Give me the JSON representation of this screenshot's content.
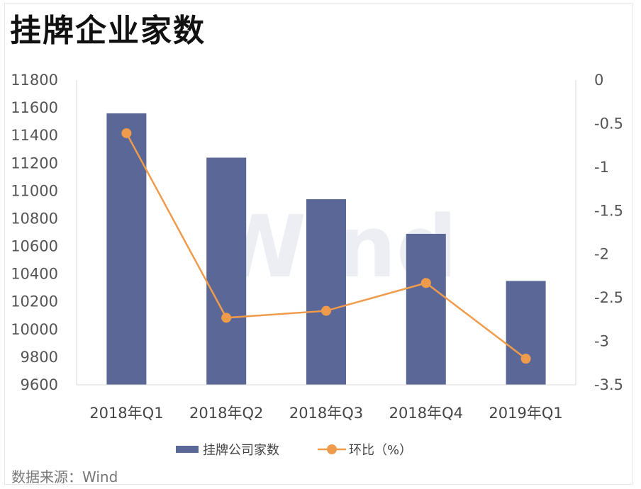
{
  "title": "挂牌企业家数",
  "source": "数据来源：Wind",
  "watermark": "Wind",
  "chart_data": {
    "type": "bar",
    "categories": [
      "2018年Q1",
      "2018年Q2",
      "2018年Q3",
      "2018年Q4",
      "2019年Q1"
    ],
    "series": [
      {
        "name": "挂牌公司家数",
        "type": "bar",
        "axis": "left",
        "color": "#5b6796",
        "values": [
          11560,
          11240,
          10940,
          10690,
          10350
        ]
      },
      {
        "name": "环比（%）",
        "type": "line",
        "axis": "right",
        "color": "#ef9b4b",
        "values": [
          -0.61,
          -2.73,
          -2.65,
          -2.33,
          -3.2
        ]
      }
    ],
    "y_left": {
      "lim": [
        9600,
        11800
      ],
      "ticks": [
        9600,
        9800,
        10000,
        10200,
        10400,
        10600,
        10800,
        11000,
        11200,
        11400,
        11600,
        11800
      ]
    },
    "y_right": {
      "lim": [
        -3.5,
        0
      ],
      "ticks": [
        "0",
        "-0.5",
        "-1",
        "-1.5",
        "-2",
        "-2.5",
        "-3",
        "-3.5"
      ],
      "tick_values": [
        0,
        -0.5,
        -1,
        -1.5,
        -2,
        -2.5,
        -3,
        -3.5
      ]
    },
    "grid": false,
    "legend": "bottom-center"
  }
}
